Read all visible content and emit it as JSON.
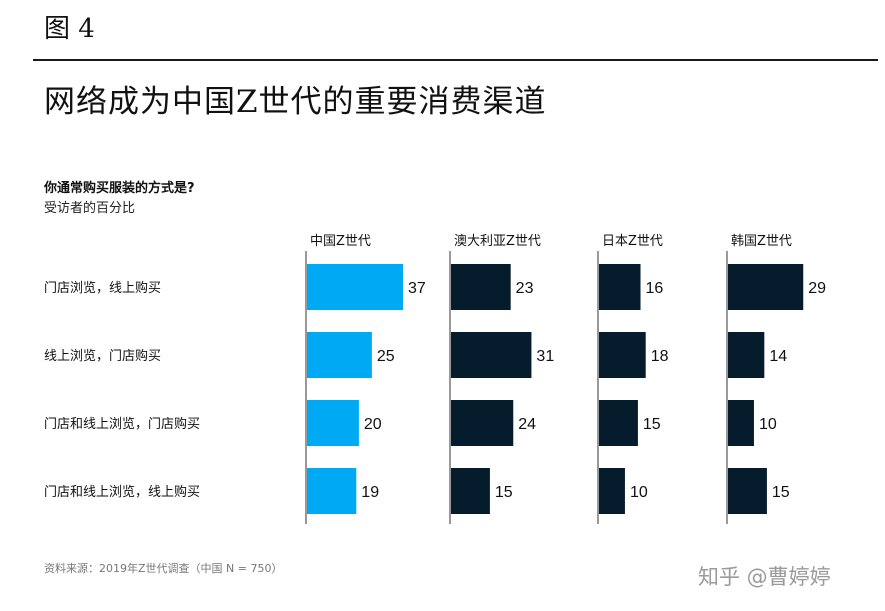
{
  "figure_label": "图 4",
  "title": "网络成为中国Z世代的重要消费渠道",
  "question": "你通常购买服装的方式是?",
  "subtitle": "受访者的百分比",
  "source": "资料来源：2019年Z世代调查（中国 N = 750）",
  "watermark": "知乎 @曹婷婷",
  "colors": {
    "china": "#00a9f4",
    "others": "#051c2c"
  },
  "chart_data": {
    "type": "bar",
    "orientation": "horizontal",
    "layout": "small-multiples",
    "categories": [
      "门店浏览，线上购买",
      "线上浏览，门店购买",
      "门店和线上浏览，门店购买",
      "门店和线上浏览，线上购买"
    ],
    "series": [
      {
        "name": "中国Z世代",
        "values": [
          37,
          25,
          20,
          19
        ],
        "color": "#00a9f4"
      },
      {
        "name": "澳大利亚Z世代",
        "values": [
          23,
          31,
          24,
          15
        ],
        "color": "#051c2c"
      },
      {
        "name": "日本Z世代",
        "values": [
          16,
          18,
          15,
          10
        ],
        "color": "#051c2c"
      },
      {
        "name": "韩国Z世代",
        "values": [
          29,
          14,
          10,
          15
        ],
        "color": "#051c2c"
      }
    ],
    "unit": "%",
    "data_labels": true
  }
}
